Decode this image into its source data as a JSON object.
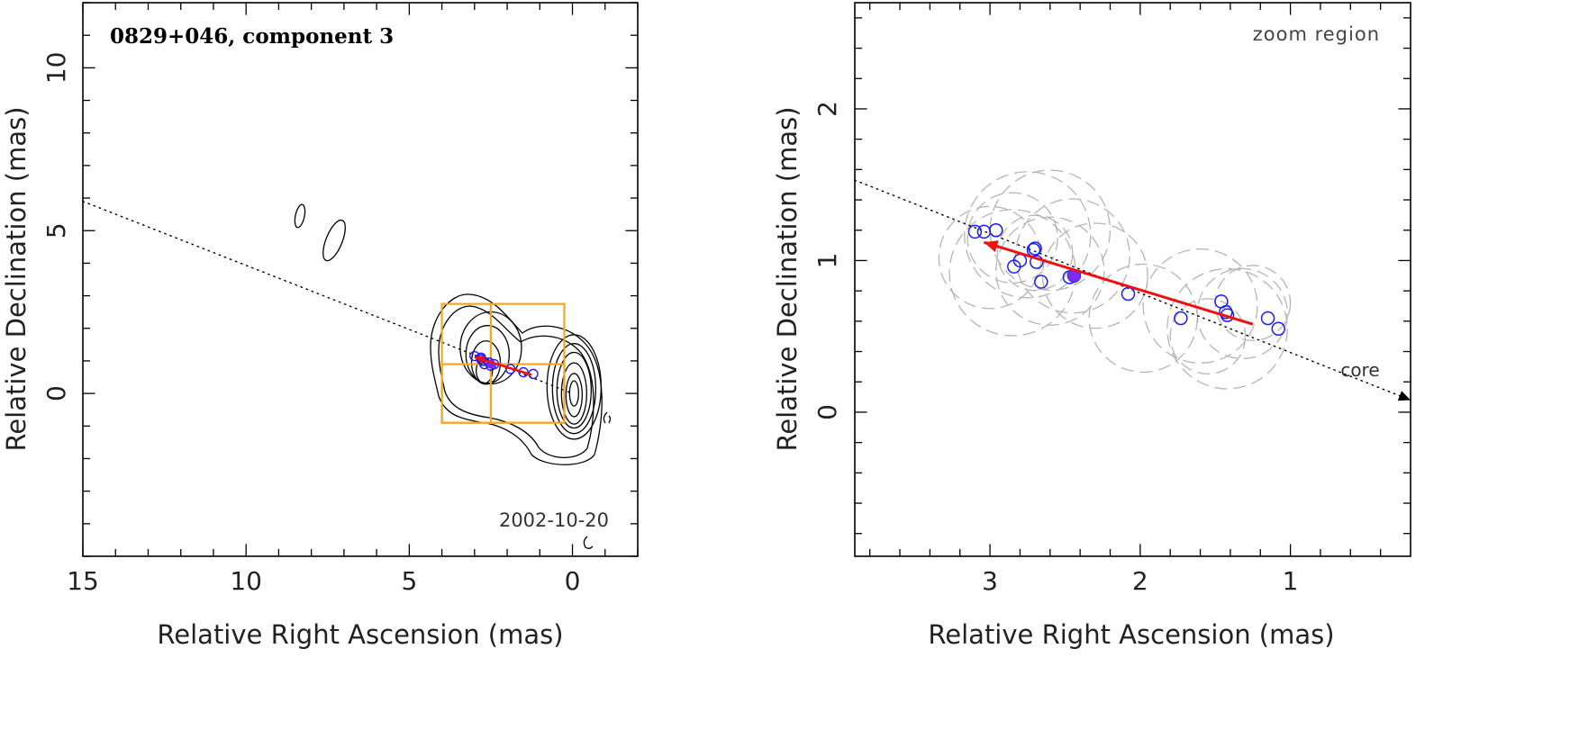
{
  "chart_data": [
    {
      "type": "scatter",
      "title": "0829+046, component 3",
      "xlabel": "Relative Right Ascension (mas)",
      "ylabel": "Relative Declination (mas)",
      "xlim": [
        15,
        -2
      ],
      "ylim": [
        -5,
        12
      ],
      "x_ticks": [
        "15",
        "10",
        "5",
        "0"
      ],
      "y_ticks": [
        "0",
        "5",
        "10"
      ],
      "epoch_label": "2002-10-20",
      "series": [
        {
          "name": "component positions",
          "points": [
            {
              "x": 3.0,
              "y": 1.15
            },
            {
              "x": 2.8,
              "y": 1.1
            },
            {
              "x": 2.75,
              "y": 1.0
            },
            {
              "x": 2.7,
              "y": 0.9
            },
            {
              "x": 2.55,
              "y": 0.95
            },
            {
              "x": 2.4,
              "y": 0.9
            },
            {
              "x": 1.9,
              "y": 0.75
            },
            {
              "x": 1.5,
              "y": 0.65
            },
            {
              "x": 1.2,
              "y": 0.6
            },
            {
              "x": 2.8,
              "y": 1.05
            },
            {
              "x": 2.5,
              "y": 0.85
            }
          ]
        }
      ],
      "highlight_point": {
        "x": 2.5,
        "y": 0.9
      },
      "arrow": {
        "from": {
          "x": 1.25,
          "y": 0.57
        },
        "to": {
          "x": 3.0,
          "y": 1.12
        }
      },
      "reference_line": {
        "from": {
          "x": 15,
          "y": 5.9
        },
        "to": {
          "x": 0,
          "y": 0
        }
      },
      "zoom_boxes": [
        {
          "x0": 4.0,
          "x1": 2.5,
          "y0": -0.9,
          "y1": 2.75
        },
        {
          "x0": 2.5,
          "x1": 0.25,
          "y0": -0.9,
          "y1": 2.75
        },
        {
          "x0": 4.0,
          "x1": 0.25,
          "y0": -0.9,
          "y1": 0.9
        }
      ]
    },
    {
      "type": "scatter",
      "title": "zoom region",
      "xlabel": "Relative Right Ascension (mas)",
      "ylabel": "Relative Declination (mas)",
      "xlim": [
        3.9,
        0.2
      ],
      "ylim": [
        -0.95,
        2.7
      ],
      "x_ticks": [
        "3",
        "2",
        "1"
      ],
      "y_ticks": [
        "0",
        "1",
        "2"
      ],
      "core_label": "core",
      "series": [
        {
          "name": "component positions",
          "points": [
            {
              "x": 3.1,
              "y": 1.19
            },
            {
              "x": 3.04,
              "y": 1.19
            },
            {
              "x": 2.96,
              "y": 1.2
            },
            {
              "x": 2.84,
              "y": 0.96
            },
            {
              "x": 2.8,
              "y": 1.0
            },
            {
              "x": 2.71,
              "y": 1.07
            },
            {
              "x": 2.7,
              "y": 1.08
            },
            {
              "x": 2.69,
              "y": 0.99
            },
            {
              "x": 2.66,
              "y": 0.86
            },
            {
              "x": 2.47,
              "y": 0.89
            },
            {
              "x": 2.44,
              "y": 0.9
            },
            {
              "x": 2.08,
              "y": 0.78
            },
            {
              "x": 1.73,
              "y": 0.62
            },
            {
              "x": 1.46,
              "y": 0.73
            },
            {
              "x": 1.43,
              "y": 0.66
            },
            {
              "x": 1.42,
              "y": 0.64
            },
            {
              "x": 1.15,
              "y": 0.62
            },
            {
              "x": 1.08,
              "y": 0.55
            }
          ]
        }
      ],
      "highlight_point": {
        "x": 2.44,
        "y": 0.9
      },
      "arrow": {
        "from": {
          "x": 1.25,
          "y": 0.58
        },
        "to": {
          "x": 3.04,
          "y": 1.12
        }
      },
      "reference_line": {
        "from": {
          "x": 3.9,
          "y": 1.53
        },
        "to": {
          "x": 0.2,
          "y": 0.08
        }
      },
      "uncertainty_circles": [
        {
          "x": 2.75,
          "y": 1.17,
          "r": 0.42
        },
        {
          "x": 2.6,
          "y": 1.2,
          "r": 0.4
        },
        {
          "x": 3.0,
          "y": 1.02,
          "r": 0.34
        },
        {
          "x": 2.85,
          "y": 0.92,
          "r": 0.42
        },
        {
          "x": 2.45,
          "y": 1.03,
          "r": 0.38
        },
        {
          "x": 2.6,
          "y": 0.93,
          "r": 0.36
        },
        {
          "x": 2.85,
          "y": 1.15,
          "r": 0.3
        },
        {
          "x": 2.7,
          "y": 1.05,
          "r": 0.25
        },
        {
          "x": 2.3,
          "y": 0.9,
          "r": 0.35
        },
        {
          "x": 1.98,
          "y": 0.62,
          "r": 0.36
        },
        {
          "x": 1.6,
          "y": 0.7,
          "r": 0.38
        },
        {
          "x": 1.42,
          "y": 0.55,
          "r": 0.4
        },
        {
          "x": 1.32,
          "y": 0.65,
          "r": 0.3
        },
        {
          "x": 1.25,
          "y": 0.72,
          "r": 0.25
        },
        {
          "x": 1.55,
          "y": 0.5,
          "r": 0.25
        }
      ]
    }
  ]
}
